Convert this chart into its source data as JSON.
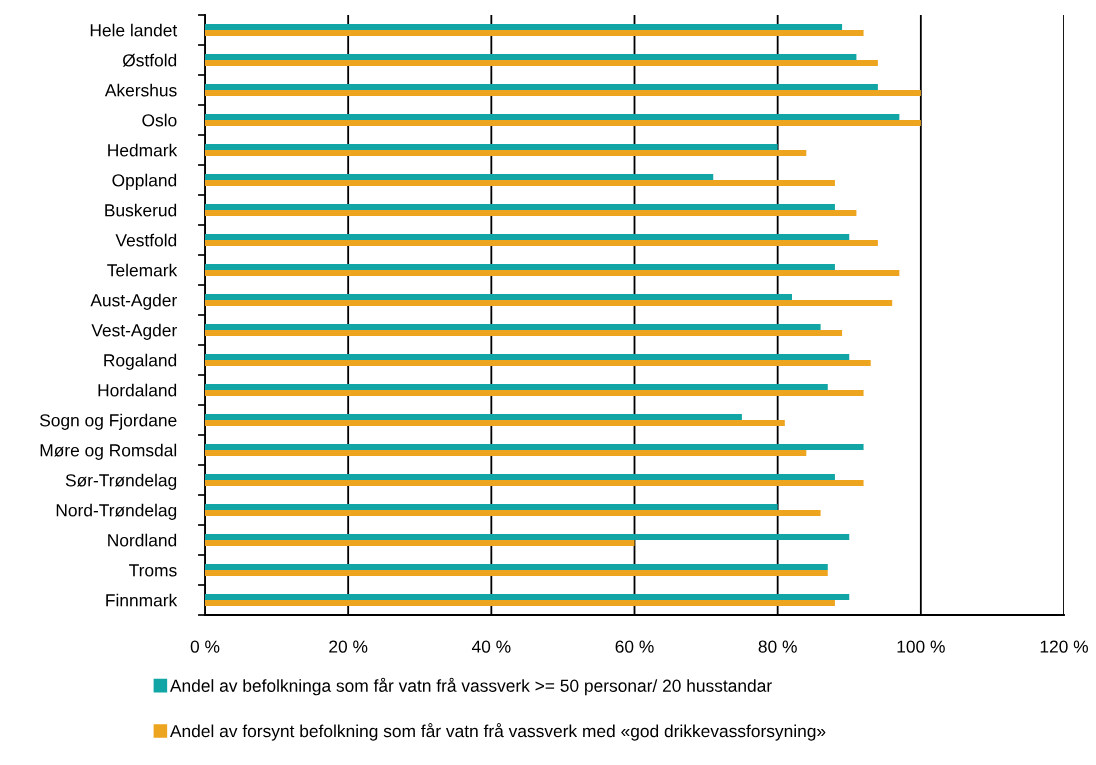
{
  "chart_data": {
    "type": "bar",
    "orientation": "horizontal",
    "categories": [
      "Hele landet",
      "Østfold",
      "Akershus",
      "Oslo",
      "Hedmark",
      "Oppland",
      "Buskerud",
      "Vestfold",
      "Telemark",
      "Aust-Agder",
      "Vest-Agder",
      "Rogaland",
      "Hordaland",
      "Sogn og Fjordane",
      "Møre og Romsdal",
      "Sør-Trøndelag",
      "Nord-Trøndelag",
      "Nordland",
      "Troms",
      "Finnmark"
    ],
    "series": [
      {
        "name": "Andel av befolkninga som får vatn frå vassverk >= 50 personar/ 20 husstandar",
        "color": "#12a5a5",
        "values": [
          89,
          91,
          94,
          97,
          80,
          71,
          88,
          90,
          88,
          82,
          86,
          90,
          87,
          75,
          92,
          88,
          80,
          90,
          87,
          90
        ]
      },
      {
        "name": "Andel av forsynt befolkning som får vatn frå vassverk med «god drikkevassforsyning»",
        "color": "#eda520",
        "values": [
          92,
          94,
          100,
          100,
          84,
          88,
          91,
          94,
          97,
          96,
          89,
          93,
          92,
          81,
          84,
          92,
          86,
          60,
          87,
          88
        ]
      }
    ],
    "xlim": [
      0,
      120
    ],
    "xticks": [
      {
        "value": 0,
        "label": "0 %"
      },
      {
        "value": 20,
        "label": "20 %"
      },
      {
        "value": 40,
        "label": "40 %"
      },
      {
        "value": 60,
        "label": "60 %"
      },
      {
        "value": 80,
        "label": "80 %"
      },
      {
        "value": 100,
        "label": "100 %"
      },
      {
        "value": 120,
        "label": "120 %"
      }
    ],
    "grid": "x",
    "legend": "bottom"
  }
}
